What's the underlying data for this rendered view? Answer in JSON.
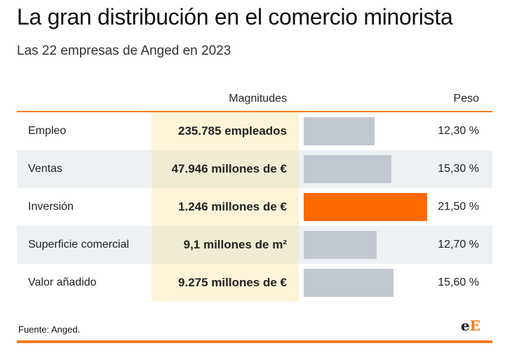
{
  "title": "La gran distribución en el comercio minorista",
  "subtitle": "Las 22 empresas de Anged en 2023",
  "columns": {
    "magnitudes": "Magnitudes",
    "peso": "Peso"
  },
  "source": "Fuente: Anged.",
  "logo": {
    "part1": "e",
    "part2": "E"
  },
  "colors": {
    "accent": "#f47b20",
    "bar_default": "#c2c8d0",
    "bar_highlight": "#ff6a00"
  },
  "chart_data": {
    "type": "bar",
    "orientation": "horizontal",
    "categories": [
      "Empleo",
      "Ventas",
      "Inversión",
      "Superficie comercial",
      "Valor añadido"
    ],
    "magnitudes": [
      "235.785 empleados",
      "47.946 millones de €",
      "1.246 millones de €",
      "9,1 millones de m²",
      "9.275 millones de €"
    ],
    "values": [
      12.3,
      15.3,
      21.5,
      12.7,
      15.6
    ],
    "value_labels": [
      "12,30 %",
      "15,30 %",
      "21,50 %",
      "12,70 %",
      "15,60 %"
    ],
    "highlight_index": 2,
    "xlim": [
      0,
      21.5
    ],
    "grid": false
  }
}
